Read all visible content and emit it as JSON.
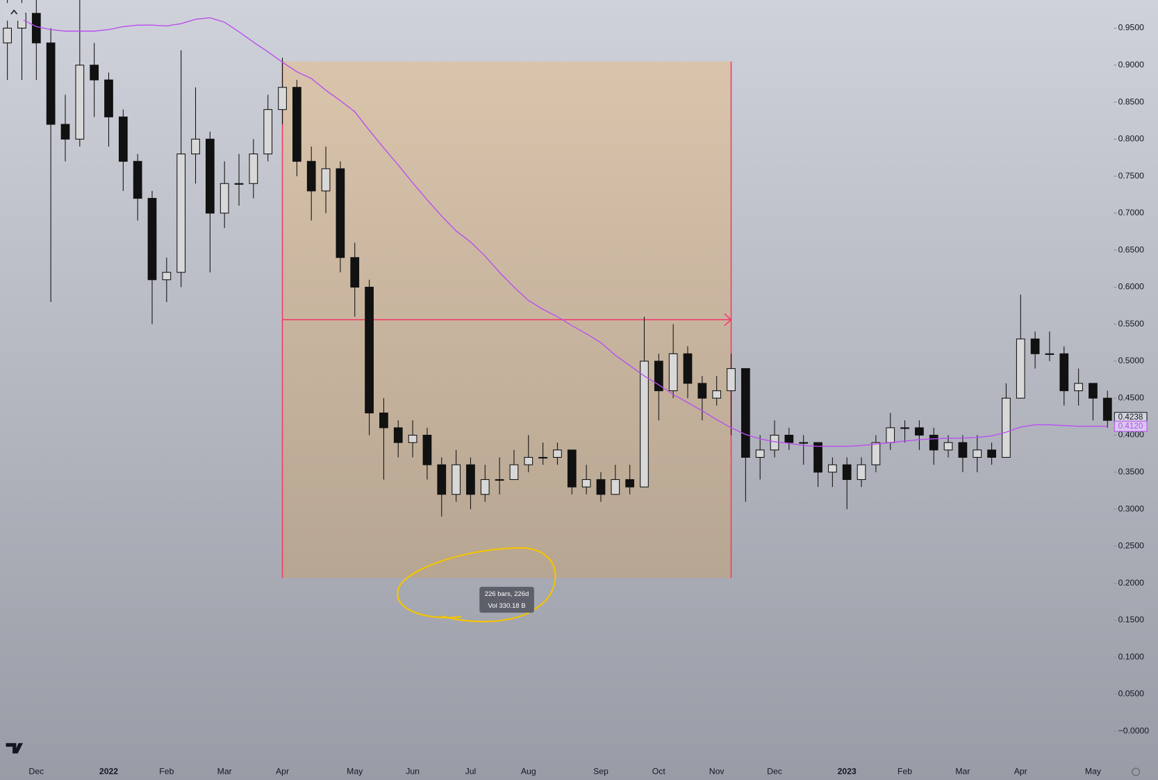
{
  "chart_data": {
    "type": "candlestick",
    "categories": [
      null,
      null,
      "Dec",
      null,
      null,
      null,
      null,
      "2022",
      null,
      null,
      null,
      "Feb",
      null,
      null,
      null,
      "Mar",
      null,
      null,
      null,
      "Apr",
      null,
      null,
      null,
      null,
      "May",
      null,
      null,
      null,
      "Jun",
      null,
      null,
      null,
      "Jul",
      null,
      null,
      null,
      "Aug",
      null,
      null,
      null,
      null,
      "Sep",
      null,
      null,
      null,
      "Oct",
      null,
      null,
      null,
      "Nov",
      null,
      null,
      null,
      "Dec",
      null,
      null,
      null,
      null,
      "2023",
      null,
      null,
      null,
      "Feb",
      null,
      null,
      null,
      "Mar",
      null,
      null,
      null,
      "Apr",
      null,
      null,
      null,
      null,
      "May",
      null
    ],
    "open": [
      0.93,
      0.95,
      0.97,
      0.93,
      0.82,
      0.8,
      0.9,
      0.88,
      0.83,
      0.77,
      0.72,
      0.61,
      0.62,
      0.78,
      0.8,
      0.7,
      0.74,
      0.74,
      0.78,
      0.84,
      0.87,
      0.77,
      0.73,
      0.76,
      0.64,
      0.6,
      0.43,
      0.41,
      0.39,
      0.4,
      0.36,
      0.32,
      0.36,
      0.32,
      0.34,
      0.34,
      0.36,
      0.37,
      0.37,
      0.38,
      0.33,
      0.34,
      0.32,
      0.34,
      0.33,
      0.5,
      0.46,
      0.51,
      0.47,
      0.45,
      0.46,
      0.49,
      0.37,
      0.38,
      0.4,
      0.39,
      0.39,
      0.35,
      0.36,
      0.34,
      0.36,
      0.39,
      0.41,
      0.41,
      0.4,
      0.38,
      0.39,
      0.37,
      0.38,
      0.37,
      0.45,
      0.53,
      0.51,
      0.51,
      0.46,
      0.47,
      0.45
    ],
    "high": [
      0.99,
      0.99,
      0.99,
      0.95,
      0.86,
      0.99,
      0.93,
      0.89,
      0.84,
      0.78,
      0.73,
      0.64,
      0.92,
      0.87,
      0.81,
      0.77,
      0.78,
      0.8,
      0.86,
      0.91,
      0.88,
      0.79,
      0.79,
      0.77,
      0.66,
      0.61,
      0.45,
      0.42,
      0.42,
      0.41,
      0.37,
      0.38,
      0.37,
      0.36,
      0.37,
      0.38,
      0.4,
      0.39,
      0.39,
      0.38,
      0.36,
      0.35,
      0.36,
      0.36,
      0.56,
      0.51,
      0.55,
      0.52,
      0.48,
      0.48,
      0.51,
      0.49,
      0.4,
      0.42,
      0.41,
      0.4,
      0.39,
      0.37,
      0.37,
      0.37,
      0.4,
      0.43,
      0.42,
      0.42,
      0.41,
      0.4,
      0.4,
      0.4,
      0.39,
      0.47,
      0.59,
      0.54,
      0.54,
      0.52,
      0.49,
      0.47,
      0.46
    ],
    "low": [
      0.88,
      0.88,
      0.88,
      0.58,
      0.77,
      0.79,
      0.83,
      0.79,
      0.73,
      0.69,
      0.55,
      0.58,
      0.6,
      0.74,
      0.62,
      0.68,
      0.71,
      0.72,
      0.77,
      0.82,
      0.75,
      0.69,
      0.7,
      0.62,
      0.56,
      0.4,
      0.34,
      0.37,
      0.37,
      0.34,
      0.29,
      0.31,
      0.3,
      0.31,
      0.32,
      0.34,
      0.35,
      0.36,
      0.36,
      0.32,
      0.32,
      0.31,
      0.32,
      0.32,
      0.33,
      0.42,
      0.45,
      0.45,
      0.42,
      0.44,
      0.4,
      0.31,
      0.34,
      0.37,
      0.38,
      0.36,
      0.33,
      0.33,
      0.3,
      0.33,
      0.35,
      0.38,
      0.39,
      0.38,
      0.36,
      0.37,
      0.35,
      0.35,
      0.36,
      0.37,
      0.45,
      0.49,
      0.5,
      0.44,
      0.44,
      0.42,
      0.41
    ],
    "close": [
      0.95,
      0.97,
      0.93,
      0.82,
      0.8,
      0.9,
      0.88,
      0.83,
      0.77,
      0.72,
      0.61,
      0.62,
      0.78,
      0.8,
      0.7,
      0.74,
      0.74,
      0.78,
      0.84,
      0.87,
      0.77,
      0.73,
      0.76,
      0.64,
      0.6,
      0.43,
      0.41,
      0.39,
      0.4,
      0.36,
      0.32,
      0.36,
      0.32,
      0.34,
      0.34,
      0.36,
      0.37,
      0.37,
      0.38,
      0.33,
      0.34,
      0.32,
      0.34,
      0.33,
      0.5,
      0.46,
      0.51,
      0.47,
      0.45,
      0.46,
      0.49,
      0.37,
      0.38,
      0.4,
      0.39,
      0.39,
      0.35,
      0.36,
      0.34,
      0.36,
      0.39,
      0.41,
      0.41,
      0.4,
      0.38,
      0.39,
      0.37,
      0.38,
      0.37,
      0.45,
      0.53,
      0.51,
      0.51,
      0.46,
      0.47,
      0.45,
      0.42
    ],
    "color": "#111111",
    "ma": {
      "color": "#b94ef0",
      "label": {
        "value": 0.412,
        "label": "0.4120"
      },
      "values": [
        0.975,
        0.962,
        0.952,
        0.948,
        0.946,
        0.946,
        0.946,
        0.948,
        0.952,
        0.954,
        0.954,
        0.953,
        0.956,
        0.962,
        0.964,
        0.958,
        0.945,
        0.931,
        0.918,
        0.904,
        0.891,
        0.882,
        0.866,
        0.852,
        0.837,
        0.812,
        0.788,
        0.765,
        0.741,
        0.718,
        0.696,
        0.676,
        0.661,
        0.642,
        0.62,
        0.6,
        0.582,
        0.57,
        0.56,
        0.548,
        0.537,
        0.525,
        0.508,
        0.494,
        0.48,
        0.468,
        0.455,
        0.444,
        0.433,
        0.421,
        0.41,
        0.401,
        0.395,
        0.391,
        0.389,
        0.386,
        0.385,
        0.385,
        0.385,
        0.386,
        0.388,
        0.39,
        0.392,
        0.394,
        0.395,
        0.396,
        0.396,
        0.397,
        0.399,
        0.404,
        0.411,
        0.414,
        0.414,
        0.413,
        0.412,
        0.412,
        0.412
      ]
    },
    "last_price": 0.4238,
    "range": {
      "from": 19,
      "to": 50,
      "top": 0.905,
      "bottom": 0.207,
      "level": 0.556,
      "color": "#f23a6b",
      "bars_label": "226 bars, 226d",
      "volume_label": "Vol 330.18 B"
    },
    "ylim": [
      -0.04,
      0.988
    ],
    "yticks": [
      {
        "value": 0.95,
        "label": "0.9500"
      },
      {
        "value": 0.9,
        "label": "0.9000"
      },
      {
        "value": 0.85,
        "label": "0.8500"
      },
      {
        "value": 0.8,
        "label": "0.8000"
      },
      {
        "value": 0.75,
        "label": "0.7500"
      },
      {
        "value": 0.7,
        "label": "0.7000"
      },
      {
        "value": 0.65,
        "label": "0.6500"
      },
      {
        "value": 0.6,
        "label": "0.6000"
      },
      {
        "value": 0.55,
        "label": "0.5500"
      },
      {
        "value": 0.5,
        "label": "0.5000"
      },
      {
        "value": 0.45,
        "label": "0.4500"
      },
      {
        "value": 0.4,
        "label": "0.4000"
      },
      {
        "value": 0.35,
        "label": "0.3500"
      },
      {
        "value": 0.3,
        "label": "0.3000"
      },
      {
        "value": 0.25,
        "label": "0.2500"
      },
      {
        "value": 0.2,
        "label": "0.2000"
      },
      {
        "value": 0.15,
        "label": "0.1500"
      },
      {
        "value": 0.1,
        "label": "0.1000"
      },
      {
        "value": 0.05,
        "label": "0.0500"
      },
      {
        "value": 0,
        "label": "−0.0000"
      }
    ]
  }
}
